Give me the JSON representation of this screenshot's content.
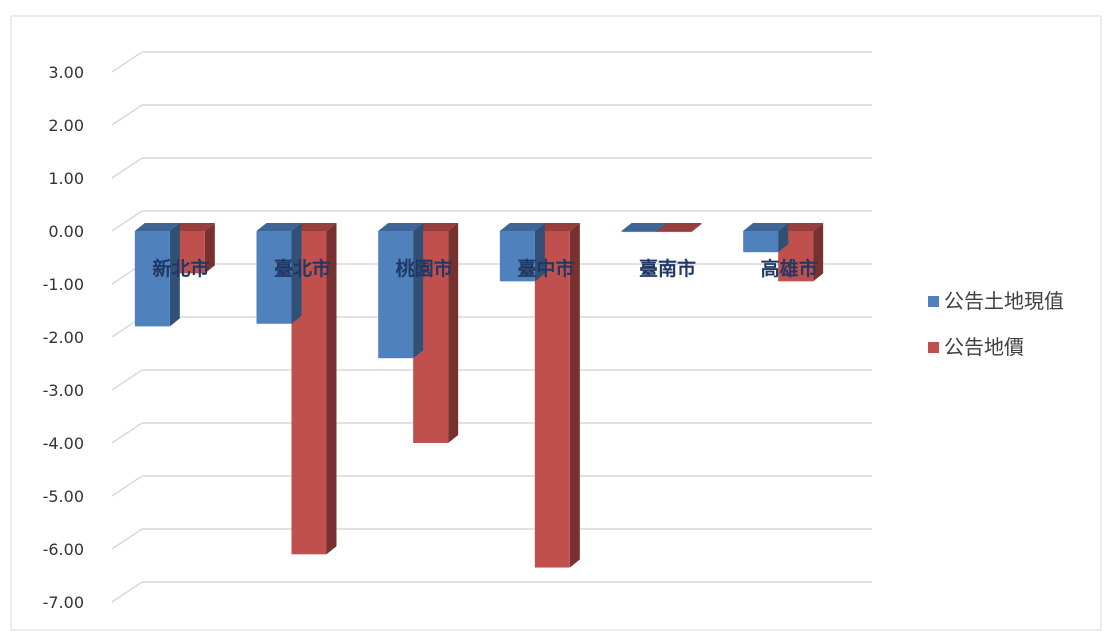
{
  "chart_data": {
    "type": "bar",
    "categories": [
      "新北市",
      "臺北市",
      "桃園市",
      "臺中市",
      "臺南市",
      "高雄市"
    ],
    "series": [
      {
        "name": "公告土地現值",
        "color": "#4F81BD",
        "values": [
          -1.8,
          -1.75,
          -2.4,
          -0.95,
          -0.02,
          -0.4
        ]
      },
      {
        "name": "公告地價",
        "color": "#C0504D",
        "values": [
          -0.8,
          -6.1,
          -4.0,
          -6.35,
          -0.02,
          -0.95
        ]
      }
    ],
    "yticks": [
      "3.00",
      "2.00",
      "1.00",
      "0.00",
      "-1.00",
      "-2.00",
      "-3.00",
      "-4.00",
      "-5.00",
      "-6.00",
      "-7.00"
    ],
    "ylim": [
      -7,
      3
    ],
    "grid": true,
    "legend_position": "right",
    "title": "",
    "xlabel": "",
    "ylabel": ""
  }
}
